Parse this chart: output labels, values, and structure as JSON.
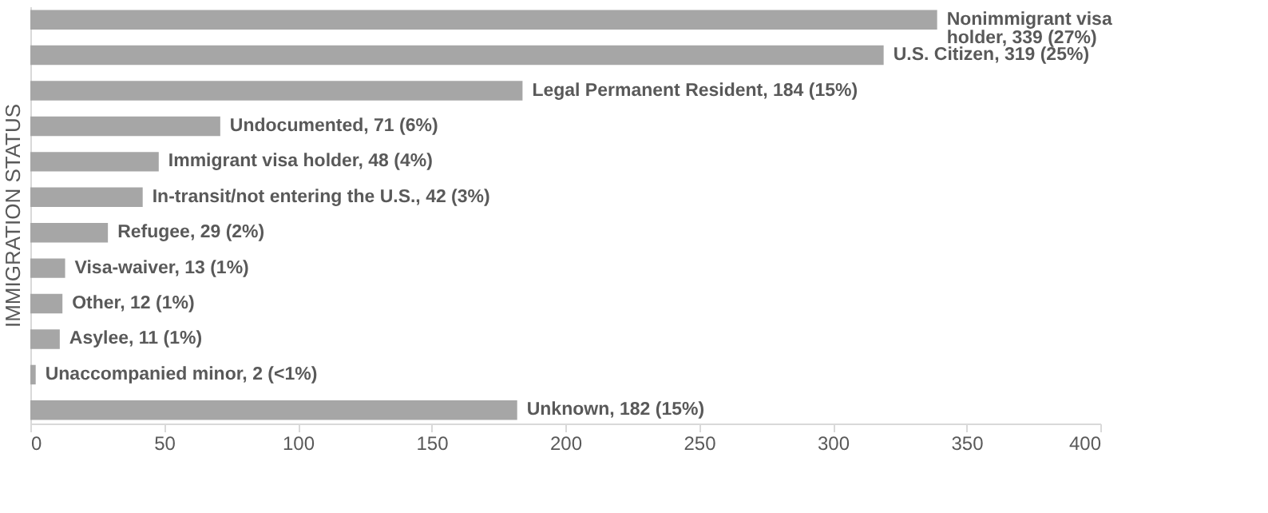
{
  "chart_data": {
    "type": "bar",
    "orientation": "horizontal",
    "ylabel": "IMMIGRATION STATUS",
    "categories": [
      null,
      null,
      null,
      null,
      null,
      null,
      null,
      null,
      null,
      null,
      null,
      null
    ],
    "values": [
      339,
      319,
      184,
      71,
      48,
      42,
      29,
      13,
      12,
      11,
      2,
      182
    ],
    "value_labels": [
      "Nonimmigrant visa holder, 339 (27%)",
      "U.S. Citizen, 319 (25%)",
      "Legal Permanent Resident, 184 (15%)",
      "Undocumented, 71 (6%)",
      "Immigrant visa holder, 48 (4%)",
      "In-transit/not entering the U.S., 42 (3%)",
      "Refugee, 29 (2%)",
      "Visa-waiver, 13 (1%)",
      "Other, 12 (1%)",
      "Asylee, 11 (1%)",
      "Unaccompanied minor, 2 (<1%)",
      "Unknown, 182 (15%)"
    ],
    "color": "#a6a6a6",
    "xlim": [
      0,
      400
    ],
    "xticks": [
      0,
      50,
      100,
      150,
      200,
      250,
      300,
      350,
      400
    ],
    "tick_labels": "x",
    "grid": false,
    "legend": false
  }
}
